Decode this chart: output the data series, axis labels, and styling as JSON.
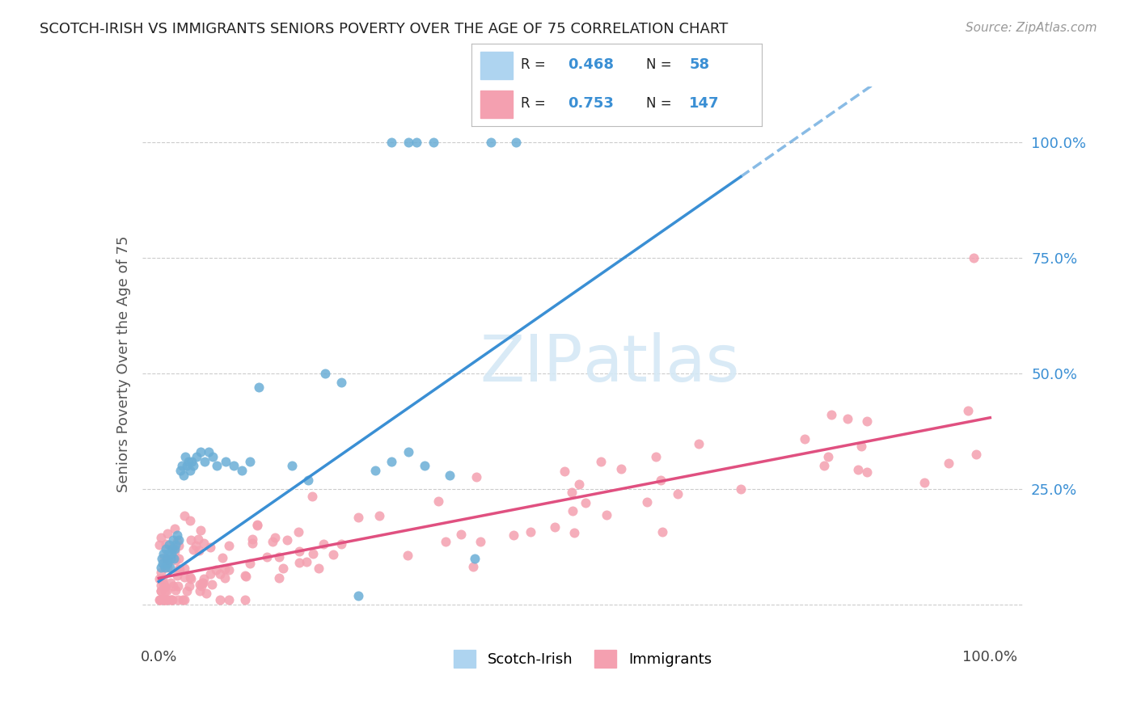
{
  "title": "SCOTCH-IRISH VS IMMIGRANTS SENIORS POVERTY OVER THE AGE OF 75 CORRELATION CHART",
  "source": "Source: ZipAtlas.com",
  "ylabel": "Seniors Poverty Over the Age of 75",
  "blue_color": "#6baed6",
  "blue_line_color": "#3a8fd4",
  "pink_color": "#f4a0b0",
  "pink_line_color": "#e05080",
  "background_color": "#ffffff",
  "grid_color": "#cccccc",
  "watermark_color": "#d5e8f5",
  "r_blue": "0.468",
  "n_blue": "58",
  "r_pink": "0.753",
  "n_pink": "147",
  "label_blue": "Scotch-Irish",
  "label_pink": "Immigrants"
}
